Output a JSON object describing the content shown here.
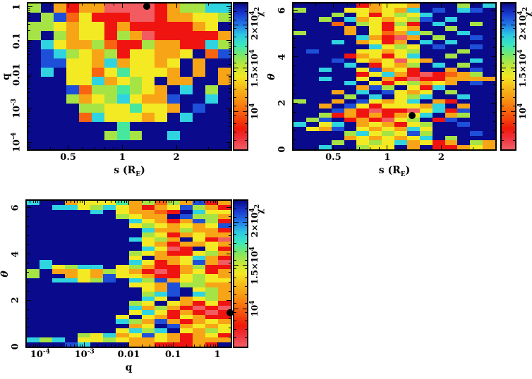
{
  "figure": {
    "background": "#ffffff",
    "text_color": "#000000"
  },
  "palette": {
    "0": "#0a0a8c",
    "1": "#1e4fd8",
    "2": "#2fd4e0",
    "3": "#46e89e",
    "4": "#a6e345",
    "5": "#f4ea23",
    "6": "#f7a517",
    "7": "#f86410",
    "8": "#f01410",
    "9": "#f25b60"
  },
  "colorbar": {
    "title": "χ^[2]",
    "min": 5600,
    "max": 22500,
    "majors": [
      {
        "v": 10000,
        "label": "10^[4]"
      },
      {
        "v": 15000,
        "label": "1.5×10^[4]"
      },
      {
        "v": 20000,
        "label": "2×10^[4]"
      }
    ],
    "minor_step": 1000,
    "gradient_top_to_bottom": [
      "#0a0a8c",
      "#1a3ad0",
      "#2277e8",
      "#2cc8e4",
      "#3ce8bc",
      "#7ce862",
      "#c2e73a",
      "#f2e822",
      "#f6bd1a",
      "#f79c14",
      "#f87410",
      "#f4480c",
      "#f0180a",
      "#f03440",
      "#f26066"
    ]
  },
  "chart_data": {
    "type": "heatmap",
    "value_label": "χ^[2]",
    "panels": [
      {
        "id": "q-vs-s",
        "x": {
          "title": "s (R_[E])",
          "scale": "log",
          "min": 0.3,
          "max": 4.0,
          "majors": [
            {
              "v": 0.5,
              "label": "0.5"
            },
            {
              "v": 1,
              "label": "1"
            },
            {
              "v": 2,
              "label": "2"
            }
          ]
        },
        "y": {
          "title": "q",
          "italic": false,
          "scale": "log",
          "min": 6.31e-05,
          "max": 1.259,
          "majors": [
            {
              "v": 1,
              "label": "1"
            },
            {
              "v": 0.1,
              "label": "0.1"
            },
            {
              "v": 0.01,
              "label": "0.01"
            },
            {
              "v": 0.001,
              "label": "10^[-3]"
            },
            {
              "v": 0.0001,
              "label": "10^[-4]"
            }
          ]
        },
        "marker": {
          "x": 1.37,
          "y": 1.05
        },
        "grid": [
          "4068669999864422",
          "0417588899866554",
          "4456558688888650",
          "4046558469888886",
          "0256647884668824",
          "0124564855665071",
          "0115562655650600",
          "0205575355560606",
          "0005526545066006",
          "0001744345602040",
          "0004654256610020",
          "0000445535560100",
          "0000725556502000",
          "0000000300000000",
          "0000004340020000",
          "0000000000000000"
        ]
      },
      {
        "id": "theta-vs-s",
        "x": {
          "title": "s (R_[E])",
          "scale": "log",
          "min": 0.3,
          "max": 4.0,
          "majors": [
            {
              "v": 0.5,
              "label": "0.5"
            },
            {
              "v": 1,
              "label": "1"
            },
            {
              "v": 2,
              "label": "2"
            }
          ]
        },
        "y": {
          "title": "θ",
          "italic": true,
          "scale": "linear",
          "min": 0,
          "max": 6.3,
          "minor_step": 0.4,
          "majors": [
            {
              "v": 0,
              "label": "0"
            },
            {
              "v": 2,
              "label": "2"
            },
            {
              "v": 4,
              "label": "4"
            },
            {
              "v": 6,
              "label": "6"
            }
          ]
        },
        "marker": {
          "x": 1.37,
          "y": 1.45
        },
        "grid": [
          "0000086556000402",
          "4000556562010210",
          "0004058545200000",
          "0040265654102000",
          "0007045848020040",
          "0000605856004000",
          "4000605762400200",
          "0000026896040010",
          "0002065860202000",
          "0000002545010010",
          "0100055654000400",
          "0000865852004000",
          "0001056595600020",
          "0000208564020400",
          "0020051658006010",
          "0000085268987640",
          "0020050689886666",
          "0000205854656010",
          "0000061405820000",
          "0006020156504000",
          "0000402054200200",
          "4006015652068000",
          "0060158555620600",
          "0001689889528100",
          "0048686865206400",
          "0410868954081000",
          "2052065685400100",
          "0561056562500000",
          "0000425451400010",
          "0000656565204000",
          "0004054526586046",
          "0020045506088656"
        ]
      },
      {
        "id": "theta-vs-q",
        "x": {
          "title": "q",
          "scale": "log",
          "min": 5.01e-05,
          "max": 2.0,
          "majors": [
            {
              "v": 0.0001,
              "label": "10^[-4]"
            },
            {
              "v": 0.001,
              "label": "10^[-3]"
            },
            {
              "v": 0.01,
              "label": "0.01"
            },
            {
              "v": 0.1,
              "label": "0.1"
            },
            {
              "v": 1,
              "label": "1"
            }
          ]
        },
        "y": {
          "title": "θ",
          "italic": true,
          "scale": "linear",
          "min": 0,
          "max": 6.3,
          "minor_step": 0.4,
          "majors": [
            {
              "v": 0,
              "label": "0"
            },
            {
              "v": 2,
              "label": "2"
            },
            {
              "v": 4,
              "label": "4"
            },
            {
              "v": 6,
              "label": "6"
            }
          ]
        },
        "marker": {
          "x": 1.9,
          "y": 1.45
        },
        "grid": [
          "2006555364746186",
          "0022542568651468",
          "0000020566780255",
          "0000000456601446",
          "0000000025686148",
          "0000000054565651",
          "0000000002664668",
          "0000000004586566",
          "0000000025460589",
          "0000000005686656",
          "0000000002598058",
          "0000000045688546",
          "0000000050665268",
          "0200000025865169",
          "0254220546886488",
          "4066564568986586",
          "4006561556885456",
          "0022541024165455",
          "0000000055614466",
          "0000000005610546",
          "0000000004210246",
          "0000000002506546",
          "0000000045056858",
          "0000000026468989",
          "0000000052586898",
          "0000000505685688",
          "0000000246168656",
          "0000000065016565",
          "0000000524205645",
          "0000452651568658",
          "2420554566568666",
          "0001200066888680"
        ]
      }
    ]
  }
}
